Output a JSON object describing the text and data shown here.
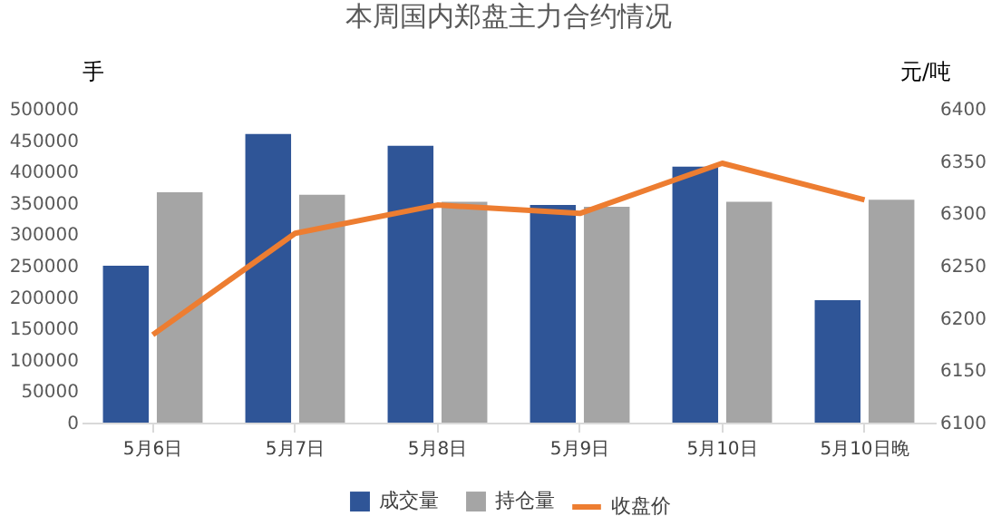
{
  "chart_data": {
    "type": "bar",
    "title": "本周国内郑盘主力合约情况",
    "ylabel": "手",
    "y2label": "元/吨",
    "categories": [
      "5月6日",
      "5月7日",
      "5月8日",
      "5月9日",
      "5月10日",
      "5月10日晚"
    ],
    "series": [
      {
        "name": "成交量",
        "color": "#2f5597",
        "values": [
          250000,
          460000,
          441000,
          347000,
          408000,
          195000
        ]
      },
      {
        "name": "持仓量",
        "color": "#a5a5a5",
        "values": [
          367000,
          363000,
          352000,
          344000,
          352000,
          355000
        ]
      },
      {
        "name": "收盘价",
        "type": "line",
        "axis": "y2",
        "color": "#ed7d31",
        "values": [
          6184,
          6281,
          6308,
          6300,
          6348,
          6313
        ]
      }
    ],
    "ylim": [
      0,
      500000
    ],
    "yticks": [
      0,
      50000,
      100000,
      150000,
      200000,
      250000,
      300000,
      350000,
      400000,
      450000,
      500000
    ],
    "y2lim": [
      6100,
      6400
    ],
    "y2ticks": [
      6100,
      6150,
      6200,
      6250,
      6300,
      6350,
      6400
    ],
    "grid": false,
    "legend": "bottom",
    "marker": "none",
    "line_style": "solid"
  }
}
